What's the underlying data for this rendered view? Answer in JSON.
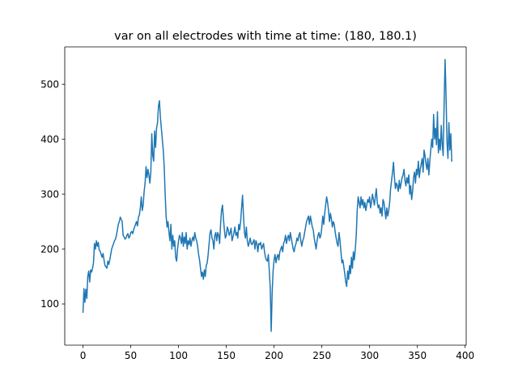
{
  "chart_data": {
    "type": "line",
    "title": "var on all electrodes with time at time: (180, 180.1)",
    "xlabel": "",
    "ylabel": "",
    "xlim": [
      -19.1,
      401.1
    ],
    "ylim": [
      25,
      568
    ],
    "x_ticks": [
      0,
      50,
      100,
      150,
      200,
      250,
      300,
      350,
      400
    ],
    "y_ticks": [
      100,
      200,
      300,
      400,
      500
    ],
    "grid": false,
    "line_color": "#1f77b4",
    "series": [
      {
        "x_start": 0,
        "x_step": 1,
        "values": [
          85,
          128,
          103,
          127,
          110,
          150,
          160,
          140,
          162,
          158,
          165,
          175,
          210,
          200,
          215,
          205,
          212,
          198,
          196,
          190,
          185,
          192,
          180,
          170,
          168,
          165,
          178,
          172,
          180,
          190,
          200,
          205,
          210,
          215,
          218,
          225,
          235,
          245,
          250,
          258,
          254,
          250,
          225,
          222,
          218,
          220,
          225,
          228,
          220,
          223,
          230,
          232,
          228,
          235,
          240,
          245,
          250,
          242,
          258,
          262,
          275,
          295,
          270,
          280,
          305,
          320,
          350,
          330,
          345,
          335,
          320,
          340,
          410,
          370,
          360,
          415,
          385,
          420,
          430,
          460,
          470,
          440,
          420,
          400,
          380,
          350,
          300,
          260,
          240,
          250,
          230,
          215,
          245,
          200,
          225,
          205,
          215,
          185,
          178,
          200,
          215,
          225,
          220,
          210,
          230,
          205,
          222,
          210,
          230,
          200,
          215,
          208,
          220,
          205,
          215,
          222,
          215,
          230,
          220,
          215,
          205,
          190,
          180,
          165,
          150,
          158,
          145,
          162,
          150,
          170,
          175,
          190,
          210,
          230,
          235,
          220,
          215,
          200,
          225,
          230,
          215,
          230,
          225,
          210,
          245,
          270,
          280,
          255,
          235,
          220,
          225,
          240,
          235,
          225,
          230,
          238,
          215,
          222,
          230,
          240,
          225,
          230,
          220,
          245,
          235,
          250,
          275,
          298,
          260,
          230,
          220,
          240,
          215,
          205,
          212,
          220,
          210,
          208,
          213,
          217,
          200,
          215,
          210,
          195,
          210,
          208,
          212,
          200,
          205,
          210,
          195,
          185,
          180,
          178,
          190,
          160,
          130,
          50,
          120,
          160,
          180,
          190,
          175,
          185,
          190,
          180,
          195,
          200,
          205,
          195,
          210,
          215,
          225,
          210,
          220,
          225,
          215,
          230,
          220,
          210,
          200,
          195,
          205,
          210,
          220,
          215,
          225,
          230,
          215,
          205,
          215,
          220,
          230,
          240,
          250,
          255,
          260,
          245,
          260,
          250,
          240,
          235,
          220,
          210,
          200,
          215,
          225,
          230,
          220,
          225,
          240,
          260,
          245,
          265,
          280,
          295,
          285,
          270,
          250,
          265,
          255,
          240,
          250,
          245,
          230,
          220,
          210,
          205,
          230,
          215,
          195,
          175,
          180,
          168,
          155,
          140,
          132,
          160,
          145,
          170,
          155,
          185,
          165,
          195,
          180,
          200,
          225,
          270,
          295,
          285,
          275,
          295,
          280,
          290,
          275,
          285,
          270,
          280,
          290,
          285,
          295,
          275,
          285,
          300,
          290,
          280,
          295,
          310,
          285,
          275,
          280,
          265,
          275,
          260,
          290,
          285,
          270,
          255,
          275,
          260,
          270,
          285,
          310,
          325,
          340,
          358,
          330,
          310,
          320,
          315,
          305,
          325,
          310,
          320,
          330,
          335,
          345,
          325,
          315,
          330,
          320,
          335,
          300,
          315,
          290,
          305,
          330,
          340,
          320,
          345,
          335,
          360,
          330,
          345,
          355,
          365,
          340,
          380,
          370,
          355,
          345,
          365,
          335,
          360,
          380,
          400,
          385,
          445,
          400,
          420,
          390,
          450,
          375,
          400,
          380,
          425,
          390,
          370,
          465,
          545,
          480,
          395,
          365,
          430,
          380,
          410,
          360
        ]
      }
    ]
  }
}
